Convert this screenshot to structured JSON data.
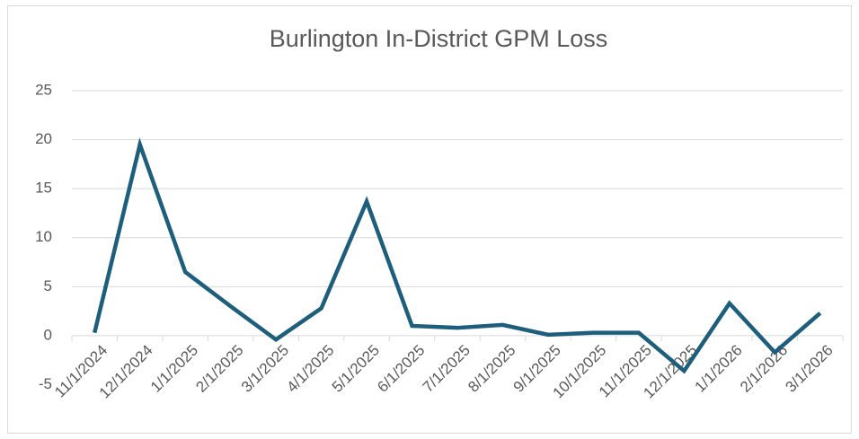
{
  "chart_data": {
    "type": "line",
    "title": "Burlington In-District GPM Loss",
    "categories": [
      "11/1/2024",
      "12/1/2024",
      "1/1/2025",
      "2/1/2025",
      "3/1/2025",
      "4/1/2025",
      "5/1/2025",
      "6/1/2025",
      "7/1/2025",
      "8/1/2025",
      "9/1/2025",
      "10/1/2025",
      "11/1/2025",
      "12/1/2025",
      "1/1/2026",
      "2/1/2026",
      "3/1/2026"
    ],
    "series": [
      {
        "name": "GPM Loss",
        "color": "#1d5e7d",
        "values": [
          0.3,
          19.5,
          6.5,
          3.0,
          -0.4,
          2.8,
          13.7,
          1.0,
          0.8,
          1.1,
          0.1,
          0.3,
          0.3,
          -3.6,
          3.3,
          -1.7,
          2.3
        ]
      }
    ],
    "ylim": [
      -5,
      25
    ],
    "yticks": [
      -5,
      0,
      5,
      10,
      15,
      20,
      25
    ],
    "grid": true
  }
}
